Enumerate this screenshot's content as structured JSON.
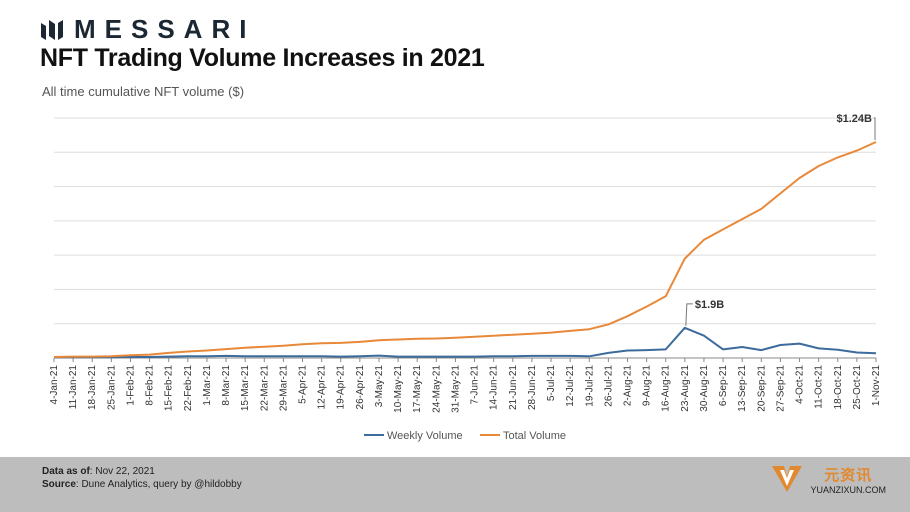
{
  "brand": {
    "name": "MESSARI",
    "logo_icon": "messari-logo-icon"
  },
  "header": {
    "title": "NFT Trading Volume Increases in 2021",
    "subtitle": "All time cumulative NFT volume ($)"
  },
  "footer": {
    "data_label": "Data as of",
    "data_value": ": Nov  22, 2021",
    "source_label": "Source",
    "source_value": ": Dune Analytics, query by @hildobby"
  },
  "watermark": {
    "cn": "元资讯",
    "en": "YUANZIXUN.COM"
  },
  "colors": {
    "weekly": "#3c6b9c",
    "total": "#e8893a",
    "grid": "#dddddd",
    "axis": "#888888",
    "footer_bg": "#bdbdbd"
  },
  "chart_data": {
    "type": "line",
    "title": "",
    "xlabel": "",
    "ylabel": "",
    "grid": true,
    "legend_position": "bottom",
    "y_axis_labels_shown": false,
    "categories": [
      "4-Jan-21",
      "11-Jan-21",
      "18-Jan-21",
      "25-Jan-21",
      "1-Feb-21",
      "8-Feb-21",
      "15-Feb-21",
      "22-Feb-21",
      "1-Mar-21",
      "8-Mar-21",
      "15-Mar-21",
      "22-Mar-21",
      "29-Mar-21",
      "5-Apr-21",
      "12-Apr-21",
      "19-Apr-21",
      "26-Apr-21",
      "3-May-21",
      "10-May-21",
      "17-May-21",
      "24-May-21",
      "31-May-21",
      "7-Jun-21",
      "14-Jun-21",
      "21-Jun-21",
      "28-Jun-21",
      "5-Jul-21",
      "12-Jul-21",
      "19-Jul-21",
      "26-Jul-21",
      "2-Aug-21",
      "9-Aug-21",
      "16-Aug-21",
      "23-Aug-21",
      "30-Aug-21",
      "6-Sep-21",
      "13-Sep-21",
      "20-Sep-21",
      "27-Sep-21",
      "4-Oct-21",
      "11-Oct-21",
      "18-Oct-21",
      "25-Oct-21",
      "1-Nov-21"
    ],
    "series": [
      {
        "name": "Weekly Volume",
        "color": "#3c6b9c",
        "values": [
          0.02,
          0.02,
          0.02,
          0.02,
          0.03,
          0.03,
          0.04,
          0.05,
          0.05,
          0.06,
          0.05,
          0.05,
          0.05,
          0.05,
          0.05,
          0.04,
          0.05,
          0.07,
          0.04,
          0.04,
          0.04,
          0.04,
          0.04,
          0.05,
          0.05,
          0.06,
          0.06,
          0.06,
          0.05,
          0.15,
          0.22,
          0.23,
          0.25,
          0.88,
          0.65,
          0.25,
          0.32,
          0.23,
          0.38,
          0.42,
          0.28,
          0.24,
          0.16,
          0.14
        ],
        "annotation": {
          "index": 33,
          "text": "$1.9B"
        }
      },
      {
        "name": "Total Volume",
        "color": "#e8893a",
        "values": [
          0.03,
          0.04,
          0.04,
          0.05,
          0.08,
          0.1,
          0.15,
          0.19,
          0.22,
          0.26,
          0.3,
          0.33,
          0.36,
          0.4,
          0.43,
          0.44,
          0.47,
          0.52,
          0.54,
          0.56,
          0.57,
          0.59,
          0.62,
          0.65,
          0.68,
          0.71,
          0.74,
          0.79,
          0.84,
          0.98,
          1.22,
          1.5,
          1.8,
          2.9,
          3.45,
          3.75,
          4.05,
          4.35,
          4.8,
          5.25,
          5.6,
          5.85,
          6.05,
          6.3
        ],
        "annotation": {
          "index": 43,
          "text": "$1.24B"
        }
      }
    ],
    "ylim": [
      0,
      7
    ]
  }
}
